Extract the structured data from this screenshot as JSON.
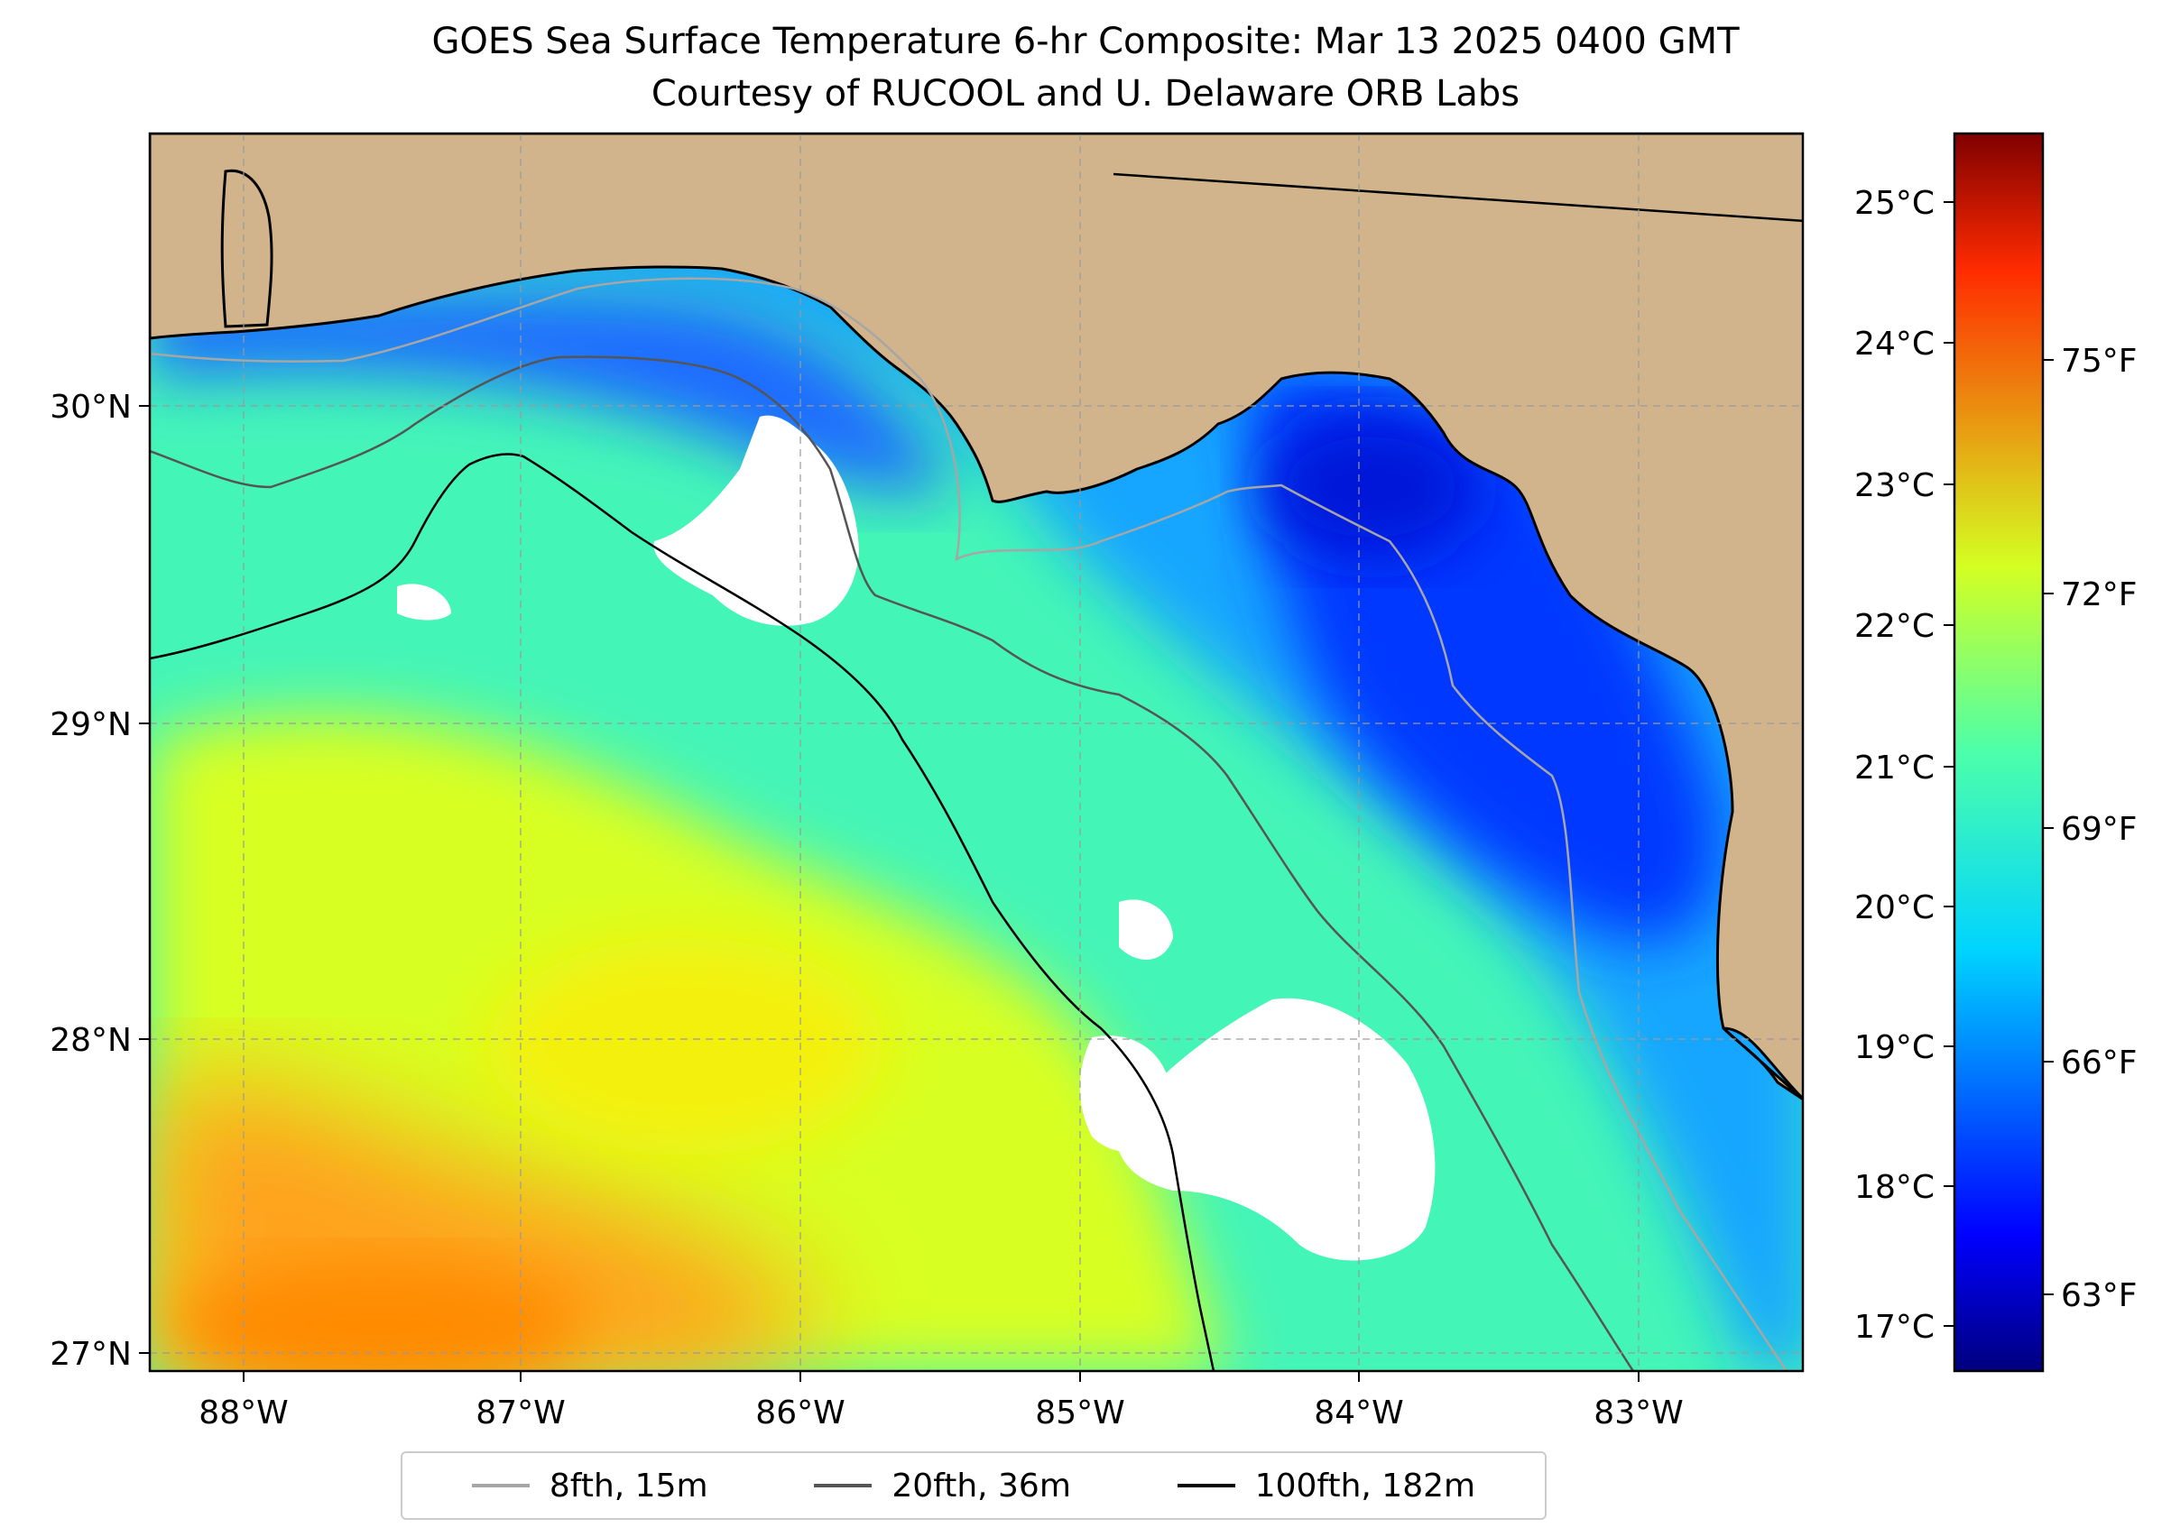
{
  "title": {
    "line1": "GOES Sea Surface Temperature 6-hr Composite: Mar 13 2025 0400 GMT",
    "line2": "Courtesy of RUCOOL and U. Delaware ORB Labs"
  },
  "map": {
    "region": "Northeastern Gulf of Mexico / Florida Big Bend",
    "lon_range": [
      -88.33,
      -82.42
    ],
    "lat_range": [
      26.93,
      30.86
    ],
    "lon_ticks": [
      {
        "value": -88,
        "label": "88°W"
      },
      {
        "value": -87,
        "label": "87°W"
      },
      {
        "value": -86,
        "label": "86°W"
      },
      {
        "value": -85,
        "label": "85°W"
      },
      {
        "value": -84,
        "label": "84°W"
      },
      {
        "value": -83,
        "label": "83°W"
      }
    ],
    "lat_ticks": [
      {
        "value": 30,
        "label": "30°N"
      },
      {
        "value": 29,
        "label": "29°N"
      },
      {
        "value": 28,
        "label": "28°N"
      },
      {
        "value": 27,
        "label": "27°N"
      }
    ],
    "gridlines": "dashed",
    "land_color": "#d2b48c",
    "no_data_color": "#ffffff"
  },
  "colorbar": {
    "colormap": "jet",
    "celsius_ticks": [
      "17°C",
      "18°C",
      "19°C",
      "20°C",
      "21°C",
      "22°C",
      "23°C",
      "24°C",
      "25°C"
    ],
    "fahrenheit_ticks": [
      "63°F",
      "66°F",
      "69°F",
      "72°F",
      "75°F"
    ],
    "celsius_range": [
      16.7,
      25.5
    ]
  },
  "legend": {
    "items": [
      {
        "label": "8fth, 15m",
        "color": "#a6a6a6"
      },
      {
        "label": "20fth, 36m",
        "color": "#555555"
      },
      {
        "label": "100fth, 182m",
        "color": "#000000"
      }
    ]
  },
  "colors": {
    "cold": "#0030ff",
    "cool": "#19a0ff",
    "mid": "#2ff5b0",
    "warm": "#dcff1e",
    "hot": "#ff9a00"
  }
}
